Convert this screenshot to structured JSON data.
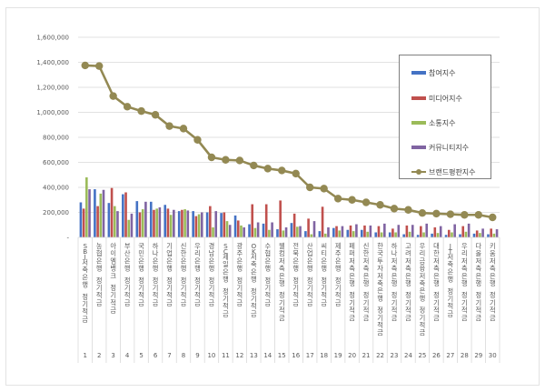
{
  "chart_data": {
    "type": "bar+line",
    "title": "",
    "xlabel": "",
    "ylabel": "",
    "ylim": [
      0,
      1600000
    ],
    "yticks": [
      "-",
      "200,000",
      "400,000",
      "600,000",
      "800,000",
      "1,000,000",
      "1,200,000",
      "1,400,000",
      "1,600,000"
    ],
    "grid": true,
    "legend_position": "upper right (inside plot)",
    "x_numbers": [
      "1",
      "2",
      "3",
      "4",
      "5",
      "6",
      "7",
      "8",
      "9",
      "10",
      "11",
      "12",
      "13",
      "14",
      "15",
      "16",
      "17",
      "18",
      "19",
      "20",
      "21",
      "22",
      "23",
      "24",
      "25",
      "26",
      "27",
      "28",
      "29",
      "30"
    ],
    "categories": [
      "SBI저축은행 정기적금",
      "농협은행 정기적금",
      "아이엠뱅크 정기적금",
      "부산은행 정기적금",
      "국민은행 정기적금",
      "하나은행 정기적금",
      "기업은행 정기적금",
      "신한은행 정기적금",
      "우리은행 정기적금",
      "경남은행 정기적금",
      "SC제일은행 정기적금",
      "광주은행 정기적금",
      "OK저축은행 정기적금",
      "수협은행 정기적금",
      "웰컴저축은행 정기적금",
      "전북은행 정기적금",
      "산업은행 정기적금",
      "씨티은행 정기적금",
      "제주은행 정기적금",
      "페퍼저축은행 정기적금",
      "신한저축은행 정기적금",
      "한국투자저축은행 정기적금",
      "하나저축은행 정기적금",
      "고려저축은행 정기적금",
      "우리금융저축은행 정기적금",
      "대한저축은행 정기적금",
      "JT저축은행 정기적금",
      "우리저축은행 정기적금",
      "다올저축은행 정기적금",
      "키움저축은행 정기적금"
    ],
    "series": [
      {
        "name": "참여지수",
        "type": "bar",
        "color": "#4472c4",
        "values": [
          280000,
          385000,
          275000,
          345000,
          290000,
          285000,
          260000,
          210000,
          210000,
          200000,
          195000,
          175000,
          105000,
          110000,
          65000,
          115000,
          50000,
          50000,
          75000,
          60000,
          60000,
          40000,
          40000,
          25000,
          20000,
          30000,
          20000,
          25000,
          30000,
          25000
        ]
      },
      {
        "name": "미디어지수",
        "type": "bar",
        "color": "#c0504d",
        "values": [
          230000,
          250000,
          395000,
          360000,
          200000,
          220000,
          230000,
          220000,
          170000,
          250000,
          200000,
          135000,
          265000,
          265000,
          295000,
          190000,
          150000,
          245000,
          90000,
          95000,
          95000,
          90000,
          70000,
          95000,
          90000,
          80000,
          60000,
          90000,
          55000,
          70000
        ]
      },
      {
        "name": "소통지수",
        "type": "bar",
        "color": "#9bbb59",
        "values": [
          480000,
          350000,
          250000,
          140000,
          225000,
          230000,
          180000,
          225000,
          185000,
          80000,
          130000,
          95000,
          75000,
          60000,
          55000,
          85000,
          25000,
          30000,
          55000,
          50000,
          45000,
          40000,
          40000,
          45000,
          40000,
          35000,
          40000,
          45000,
          35000,
          30000
        ]
      },
      {
        "name": "커뮤니티지수",
        "type": "bar",
        "color": "#8064a2",
        "values": [
          385000,
          380000,
          210000,
          190000,
          285000,
          240000,
          220000,
          215000,
          200000,
          210000,
          100000,
          80000,
          120000,
          120000,
          80000,
          90000,
          130000,
          80000,
          90000,
          105000,
          95000,
          110000,
          100000,
          100000,
          110000,
          90000,
          105000,
          110000,
          70000,
          65000
        ]
      },
      {
        "name": "브랜드평판지수",
        "type": "line",
        "color": "#938953",
        "values": [
          1375000,
          1370000,
          1130000,
          1045000,
          1010000,
          980000,
          890000,
          870000,
          780000,
          640000,
          620000,
          615000,
          575000,
          550000,
          535000,
          510000,
          400000,
          390000,
          310000,
          300000,
          280000,
          260000,
          230000,
          220000,
          195000,
          190000,
          185000,
          180000,
          180000,
          160000
        ]
      }
    ]
  },
  "legend": {
    "items": [
      {
        "label": "참여지수",
        "color": "#4472c4"
      },
      {
        "label": "미디어지수",
        "color": "#c0504d"
      },
      {
        "label": "소통지수",
        "color": "#9bbb59"
      },
      {
        "label": "커뮤니티지수",
        "color": "#8064a2"
      },
      {
        "label": "브랜드평판지수",
        "color": "#938953"
      }
    ]
  }
}
